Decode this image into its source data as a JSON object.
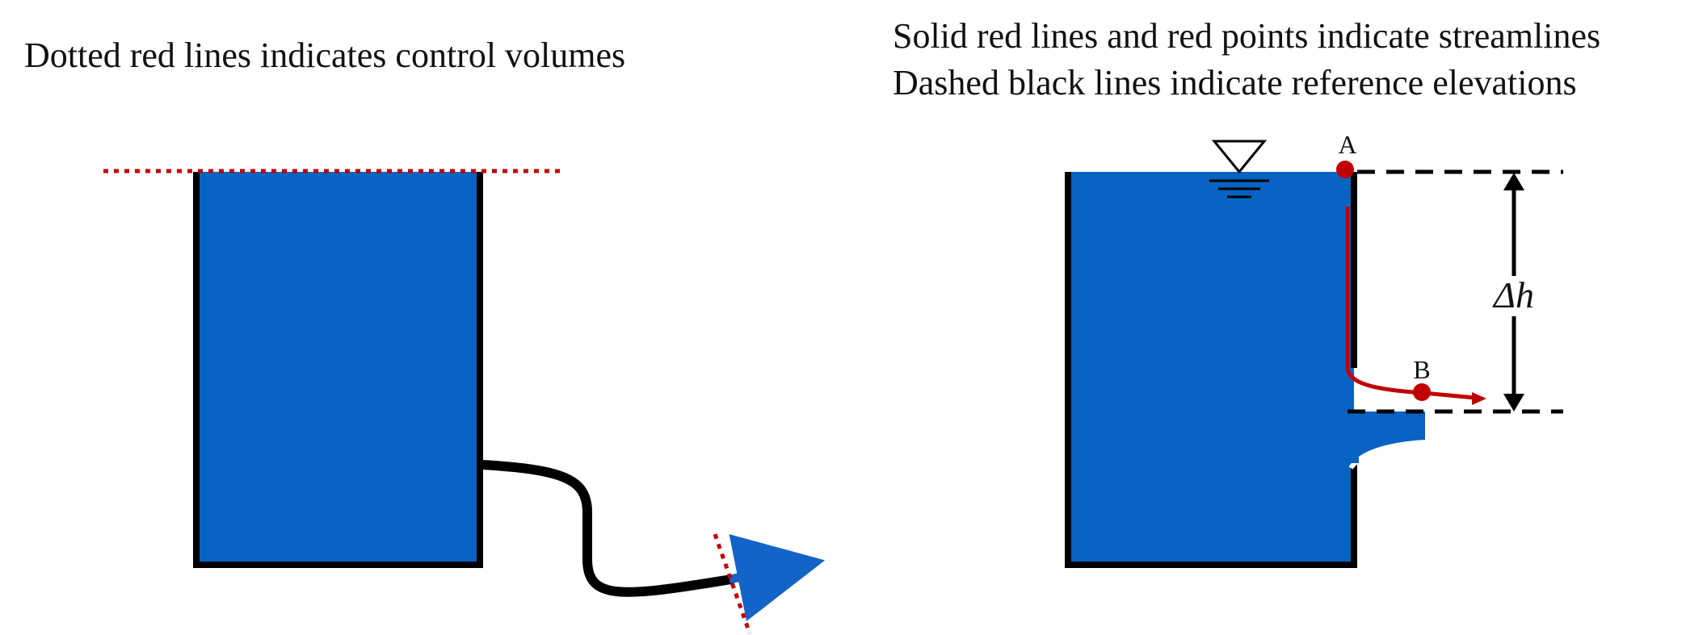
{
  "captions": {
    "left": "Dotted red lines indicates control volumes",
    "right_line1": "Solid red lines and red points indicate streamlines",
    "right_line2": "Dashed black lines indicate reference elevations"
  },
  "labels": {
    "point_a": "A",
    "point_b": "B",
    "delta_h": "Δh"
  },
  "colors": {
    "water": "#0763c2",
    "wall": "#000000",
    "control_volume": "#c00000",
    "streamline": "#c00000",
    "reference_line": "#000000",
    "outflow_arrow": "#1464c8"
  },
  "icons": {
    "free_surface_marker": "inverted-triangle-water-surface-symbol"
  }
}
